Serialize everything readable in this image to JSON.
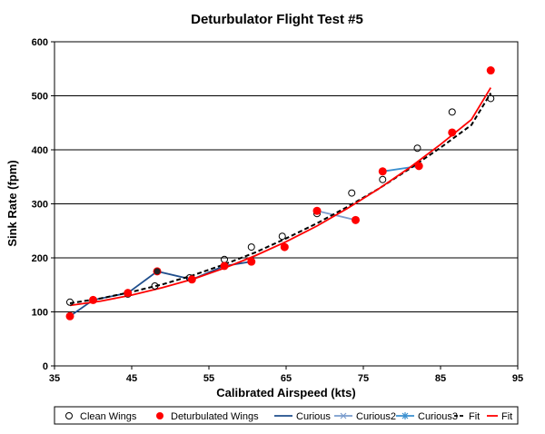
{
  "chart_data": {
    "type": "scatter",
    "title": "Deturbulator Flight Test #5",
    "xlabel": "Calibrated Airspeed  (kts)",
    "ylabel": "Sink Rate (fpm)",
    "xlim": [
      35,
      95
    ],
    "ylim": [
      0,
      600
    ],
    "xticks": [
      35,
      45,
      55,
      65,
      75,
      85,
      95
    ],
    "yticks": [
      0,
      100,
      200,
      300,
      400,
      500,
      600
    ],
    "grid": "horizontal",
    "legend_position": "bottom",
    "series": [
      {
        "name": "Clean Wings",
        "kind": "marker-open-circle",
        "color": "#000000",
        "x": [
          37,
          40,
          44.5,
          48,
          52.5,
          57,
          60.5,
          64.5,
          69,
          73.5,
          77.5,
          82,
          86.5,
          91.5
        ],
        "y": [
          118,
          122,
          133,
          148,
          163,
          197,
          220,
          240,
          282,
          320,
          345,
          403,
          470,
          495
        ]
      },
      {
        "name": "Deturbulated Wings",
        "kind": "marker-filled-circle",
        "color": "#ff0000",
        "x": [
          37,
          40,
          44.5,
          48.3,
          52.8,
          57,
          60.5,
          64.8,
          69,
          74,
          77.5,
          82.2,
          86.5,
          91.5
        ],
        "y": [
          92,
          122,
          135,
          175,
          160,
          185,
          193,
          220,
          287,
          270,
          360,
          370,
          432,
          547
        ]
      },
      {
        "name": "Curious",
        "kind": "line",
        "color": "#1f4e8c",
        "x": [
          37,
          40,
          44.5,
          48.3,
          52.8,
          57,
          60.5
        ],
        "y": [
          92,
          122,
          135,
          175,
          160,
          185,
          193
        ]
      },
      {
        "name": "Curious2",
        "kind": "line",
        "color": "#7a9ccd",
        "x": [
          69,
          74
        ],
        "y": [
          287,
          270
        ]
      },
      {
        "name": "Curious3",
        "kind": "line",
        "color": "#3a8fcf",
        "x": [
          77.5,
          82.2
        ],
        "y": [
          360,
          370
        ]
      },
      {
        "name": "Fit",
        "kind": "dashed-line",
        "color": "#000000",
        "x": [
          37,
          41,
          45,
          49,
          53,
          57,
          61,
          65,
          69,
          73,
          77,
          81,
          85,
          89,
          91.5
        ],
        "y": [
          116,
          125,
          137,
          151,
          168,
          188,
          210,
          236,
          264,
          295,
          328,
          365,
          404,
          446,
          505
        ]
      },
      {
        "name": "Fit",
        "kind": "line",
        "color": "#ff0000",
        "x": [
          37,
          41,
          45,
          49,
          53,
          57,
          61,
          65,
          69,
          73,
          77,
          81,
          85,
          89,
          91.5
        ],
        "y": [
          112,
          120,
          131,
          145,
          161,
          181,
          204,
          230,
          259,
          292,
          328,
          367,
          410,
          456,
          515
        ]
      }
    ]
  },
  "highlight_point": {
    "x": 48.3,
    "y": 175,
    "color": "#222222"
  }
}
